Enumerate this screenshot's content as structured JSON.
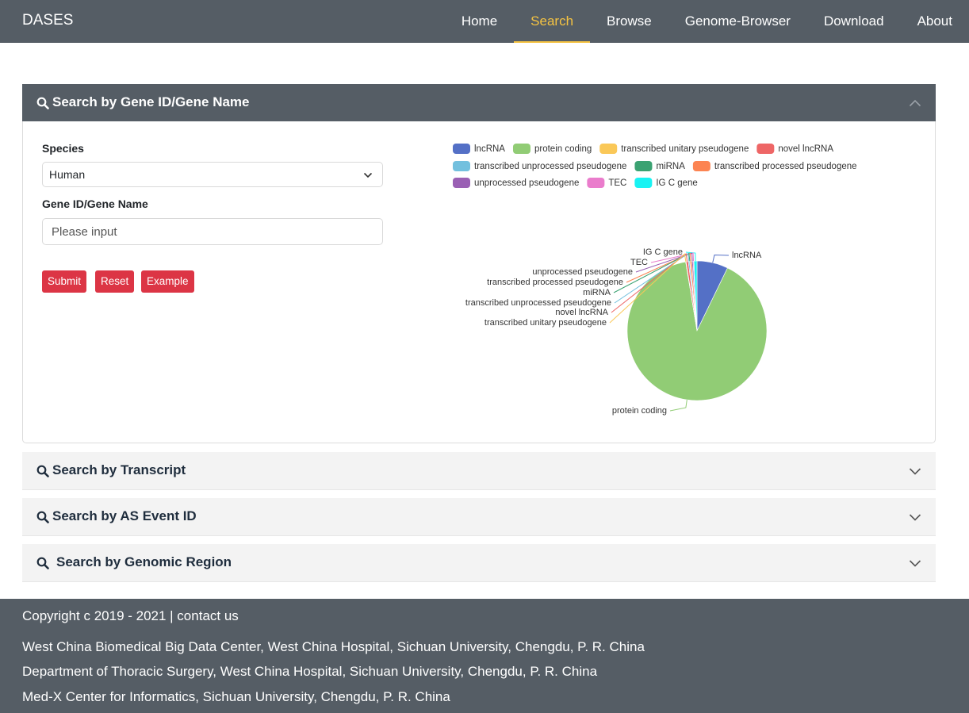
{
  "nav": {
    "brand": "DASES",
    "items": [
      {
        "label": "Home",
        "active": false
      },
      {
        "label": "Search",
        "active": true
      },
      {
        "label": "Browse",
        "active": false
      },
      {
        "label": "Genome-Browser",
        "active": false
      },
      {
        "label": "Download",
        "active": false
      },
      {
        "label": "About",
        "active": false
      }
    ]
  },
  "panels": [
    {
      "title": "Search by Gene ID/Gene Name",
      "expanded": true
    },
    {
      "title": "Search by Transcript",
      "expanded": false
    },
    {
      "title": "Search by AS Event ID",
      "expanded": false
    },
    {
      "title": "Search by Genomic Region",
      "expanded": false
    }
  ],
  "form": {
    "species_label": "Species",
    "species_value": "Human",
    "gene_label": "Gene ID/Gene Name",
    "gene_placeholder": "Please input",
    "submit": "Submit",
    "reset": "Reset",
    "example": "Example"
  },
  "chart_data": {
    "type": "pie",
    "legend_position": "top",
    "categories": [
      "lncRNA",
      "protein coding",
      "transcribed unitary pseudogene",
      "novel lncRNA",
      "transcribed unprocessed pseudogene",
      "miRNA",
      "transcribed processed pseudogene",
      "unprocessed pseudogene",
      "TEC",
      "IG C gene"
    ],
    "values": [
      7.2,
      90.2,
      0.1,
      0.5,
      0.3,
      0.1,
      0.4,
      0.3,
      0.2,
      0.7
    ],
    "colors": [
      "#5470c6",
      "#91cc75",
      "#fac858",
      "#ee6666",
      "#73c0de",
      "#3ba272",
      "#fc8452",
      "#9a60b4",
      "#ea7ccc",
      "#19f3f3"
    ]
  },
  "footer": {
    "copyright": "Copyright c 2019 - 2021 | contact us",
    "line1": "West China Biomedical Big Data Center, West China Hospital, Sichuan University, Chengdu, P. R. China",
    "line2": "Department of Thoracic Surgery, West China Hospital, Sichuan University, Chengdu, P. R. China",
    "line3": "Med-X Center for Informatics, Sichuan University, Chengdu, P. R. China"
  }
}
